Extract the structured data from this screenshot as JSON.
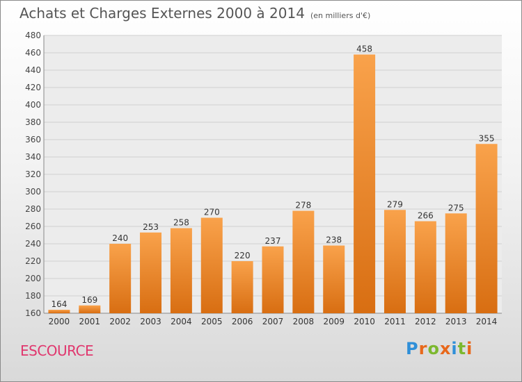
{
  "header": {
    "title": "Achats et Charges Externes 2000 à 2014",
    "subtitle": "(en milliers d'€)"
  },
  "footer": {
    "place": "ESCOURCE",
    "logo_text": "Proxiti"
  },
  "colors": {
    "bar_light": "#f9a24b",
    "bar_dark": "#d86e12",
    "place": "#e0376e",
    "logo": [
      "#2f8fd8",
      "#e8681b",
      "#7cb82f",
      "#e8681b",
      "#2f8fd8",
      "#7cb82f",
      "#e8681b"
    ]
  },
  "chart_data": {
    "type": "bar",
    "categories": [
      "2000",
      "2001",
      "2002",
      "2003",
      "2004",
      "2005",
      "2006",
      "2007",
      "2008",
      "2009",
      "2010",
      "2011",
      "2012",
      "2013",
      "2014"
    ],
    "values": [
      164,
      169,
      240,
      253,
      258,
      270,
      220,
      237,
      278,
      238,
      458,
      279,
      266,
      275,
      355
    ],
    "ylim": [
      160,
      480
    ],
    "yticks": [
      160,
      180,
      200,
      220,
      240,
      260,
      280,
      300,
      320,
      340,
      360,
      380,
      400,
      420,
      440,
      460,
      480
    ],
    "grid": true,
    "data_labels": true
  }
}
